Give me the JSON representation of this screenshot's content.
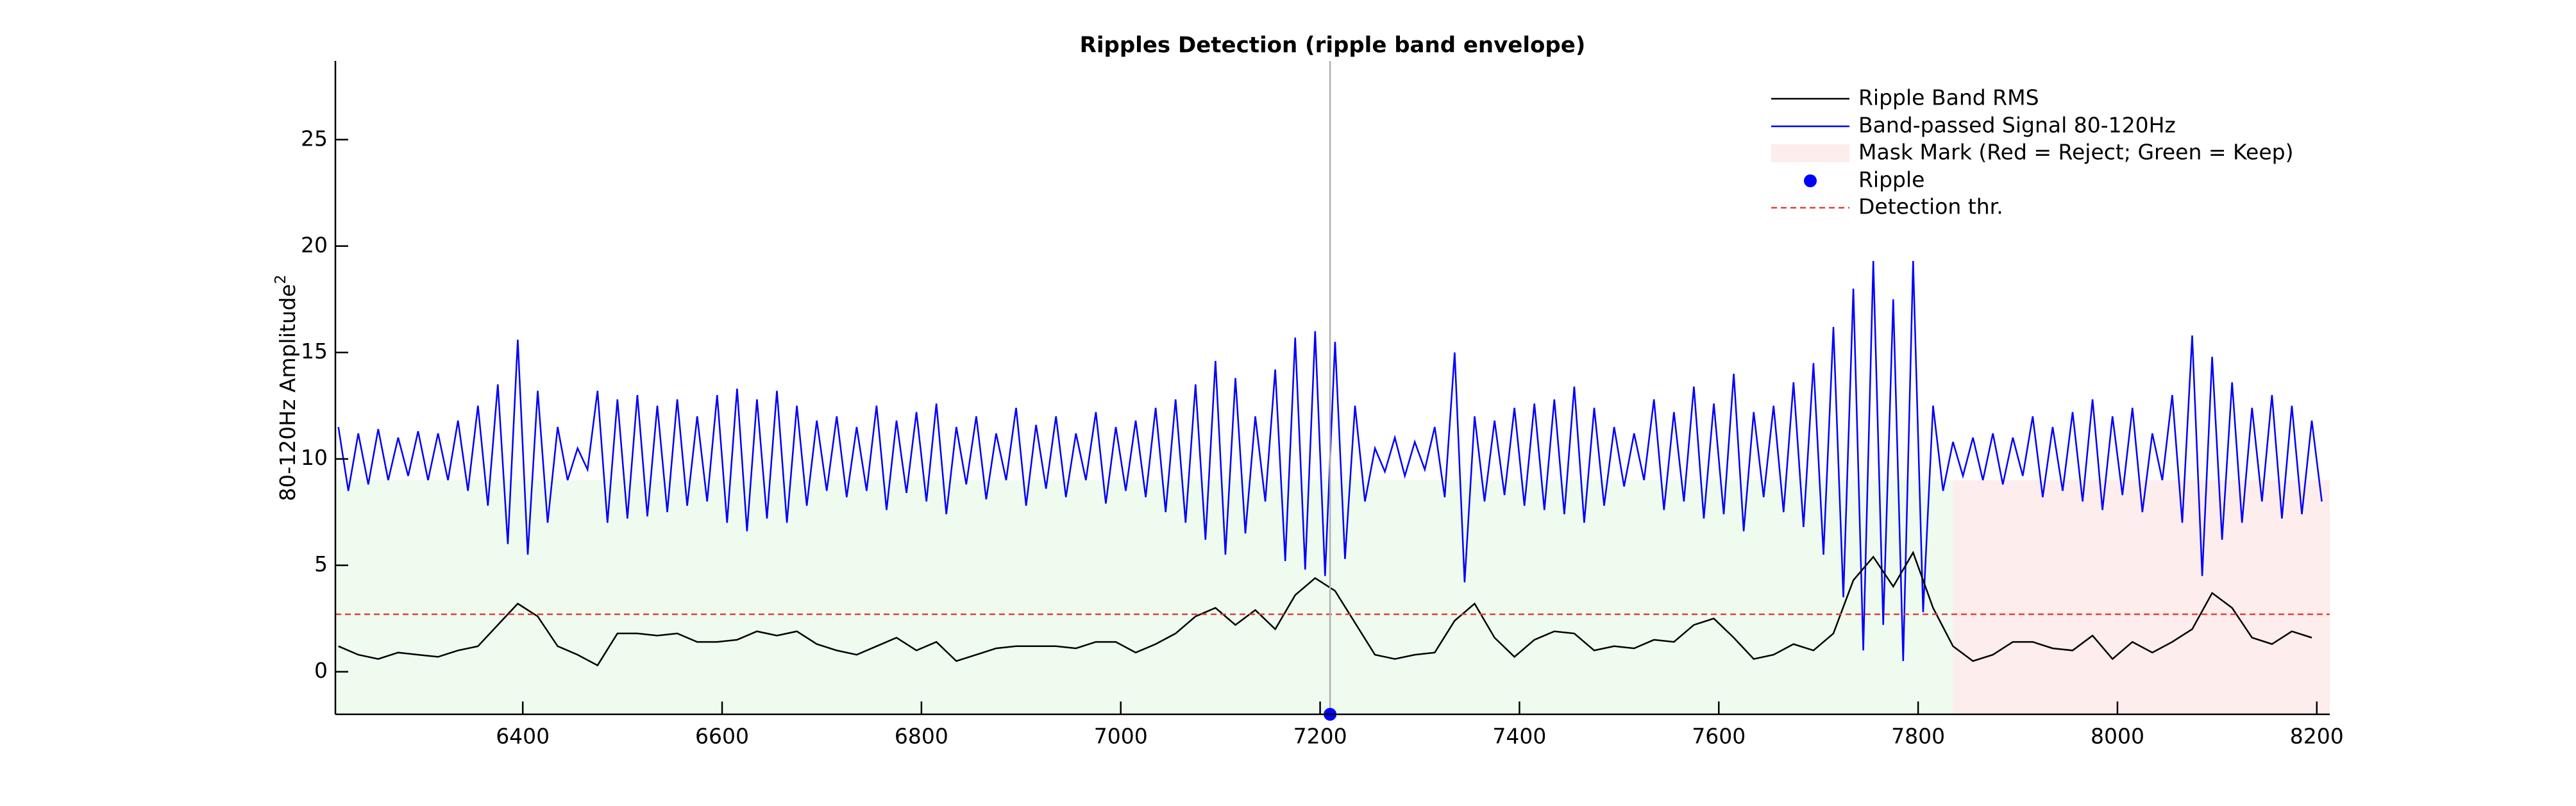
{
  "chart_data": {
    "type": "line",
    "title": "Ripples Detection  (ripple band envelope)",
    "ylabel": "80-120Hz Amplitude",
    "ylabel_superscript": "2",
    "xlim": [
      6212,
      8213
    ],
    "ylim": [
      -2,
      28.7
    ],
    "xticks": [
      6400,
      6600,
      6800,
      7000,
      7200,
      7400,
      7600,
      7800,
      8000,
      8200
    ],
    "yticks": [
      0,
      5,
      10,
      15,
      20,
      25
    ],
    "legend": "upper right",
    "mask": {
      "name": "Mask Mark (Red = Reject; Green = Keep)",
      "legend_color": "#fdeded",
      "regions": [
        {
          "color": "#effbef",
          "xrange": [
            6212,
            7835
          ],
          "top": 9
        },
        {
          "color": "#fdeded",
          "xrange": [
            7835,
            8213
          ],
          "top": 9
        }
      ]
    },
    "series": [
      {
        "name": "Ripple Band RMS",
        "color": "#000000",
        "x": [
          6215,
          6235,
          6255,
          6275,
          6295,
          6315,
          6335,
          6355,
          6375,
          6395,
          6415,
          6435,
          6455,
          6475,
          6495,
          6515,
          6535,
          6555,
          6575,
          6595,
          6615,
          6635,
          6655,
          6675,
          6695,
          6715,
          6735,
          6755,
          6775,
          6795,
          6815,
          6835,
          6855,
          6875,
          6895,
          6915,
          6935,
          6955,
          6975,
          6995,
          7015,
          7035,
          7055,
          7075,
          7095,
          7115,
          7135,
          7155,
          7175,
          7195,
          7215,
          7235,
          7255,
          7275,
          7295,
          7315,
          7335,
          7355,
          7375,
          7395,
          7415,
          7435,
          7455,
          7475,
          7495,
          7515,
          7535,
          7555,
          7575,
          7595,
          7615,
          7635,
          7655,
          7675,
          7695,
          7715,
          7735,
          7755,
          7775,
          7795,
          7815,
          7835,
          7855,
          7875,
          7895,
          7915,
          7935,
          7955,
          7975,
          7995,
          8015,
          8035,
          8055,
          8075,
          8095,
          8115,
          8135,
          8155,
          8175,
          8195
        ],
        "values": [
          1.2,
          0.8,
          0.6,
          0.9,
          0.8,
          0.7,
          1,
          1.2,
          2.2,
          3.2,
          2.6,
          1.2,
          0.8,
          0.3,
          1.8,
          1.8,
          1.7,
          1.8,
          1.4,
          1.4,
          1.5,
          1.9,
          1.7,
          1.9,
          1.3,
          1,
          0.8,
          1.2,
          1.6,
          1,
          1.4,
          0.5,
          0.8,
          1.1,
          1.2,
          1.2,
          1.2,
          1.1,
          1.4,
          1.4,
          0.9,
          1.3,
          1.8,
          2.6,
          3,
          2.2,
          2.9,
          2,
          3.6,
          4.4,
          3.8,
          2.3,
          0.8,
          0.6,
          0.8,
          0.9,
          2.4,
          3.2,
          1.6,
          0.7,
          1.5,
          1.9,
          1.8,
          1,
          1.2,
          1.1,
          1.5,
          1.4,
          2.2,
          2.5,
          1.6,
          0.6,
          0.8,
          1.3,
          1,
          1.8,
          4.3,
          5.4,
          4,
          5.6,
          3,
          1.2,
          0.5,
          0.8,
          1.4,
          1.4,
          1.1,
          1,
          1.7,
          0.6,
          1.4,
          0.9,
          1.4,
          2,
          3.7,
          3,
          1.6,
          1.3,
          1.9,
          1.6
        ]
      },
      {
        "name": "Band-passed Signal 80-120Hz",
        "color": "#0000ff",
        "x": [
          6215,
          6225,
          6235,
          6245,
          6255,
          6265,
          6275,
          6285,
          6295,
          6305,
          6315,
          6325,
          6335,
          6345,
          6355,
          6365,
          6375,
          6385,
          6395,
          6405,
          6415,
          6425,
          6435,
          6445,
          6455,
          6465,
          6475,
          6485,
          6495,
          6505,
          6515,
          6525,
          6535,
          6545,
          6555,
          6565,
          6575,
          6585,
          6595,
          6605,
          6615,
          6625,
          6635,
          6645,
          6655,
          6665,
          6675,
          6685,
          6695,
          6705,
          6715,
          6725,
          6735,
          6745,
          6755,
          6765,
          6775,
          6785,
          6795,
          6805,
          6815,
          6825,
          6835,
          6845,
          6855,
          6865,
          6875,
          6885,
          6895,
          6905,
          6915,
          6925,
          6935,
          6945,
          6955,
          6965,
          6975,
          6985,
          6995,
          7005,
          7015,
          7025,
          7035,
          7045,
          7055,
          7065,
          7075,
          7085,
          7095,
          7105,
          7115,
          7125,
          7135,
          7145,
          7155,
          7165,
          7175,
          7185,
          7195,
          7205,
          7215,
          7225,
          7235,
          7245,
          7255,
          7265,
          7275,
          7285,
          7295,
          7305,
          7315,
          7325,
          7335,
          7345,
          7355,
          7365,
          7375,
          7385,
          7395,
          7405,
          7415,
          7425,
          7435,
          7445,
          7455,
          7465,
          7475,
          7485,
          7495,
          7505,
          7515,
          7525,
          7535,
          7545,
          7555,
          7565,
          7575,
          7585,
          7595,
          7605,
          7615,
          7625,
          7635,
          7645,
          7655,
          7665,
          7675,
          7685,
          7695,
          7705,
          7715,
          7725,
          7735,
          7745,
          7755,
          7765,
          7775,
          7785,
          7795,
          7805,
          7815,
          7825,
          7835,
          7845,
          7855,
          7865,
          7875,
          7885,
          7895,
          7905,
          7915,
          7925,
          7935,
          7945,
          7955,
          7965,
          7975,
          7985,
          7995,
          8005,
          8015,
          8025,
          8035,
          8045,
          8055,
          8065,
          8075,
          8085,
          8095,
          8105,
          8115,
          8125,
          8135,
          8145,
          8155,
          8165,
          8175,
          8185,
          8195,
          8205
        ],
        "values": [
          11.5,
          8.5,
          11.2,
          8.8,
          11.4,
          9,
          11,
          9.2,
          11.3,
          9,
          11.2,
          9,
          11.8,
          8.5,
          12.5,
          7.8,
          13.5,
          6,
          15.6,
          5.5,
          13.2,
          7,
          11.5,
          9,
          10.5,
          9.5,
          13.2,
          7,
          12.8,
          7.2,
          13,
          7.3,
          12.5,
          7.5,
          12.8,
          7.8,
          12,
          8,
          13,
          7,
          13.3,
          6.6,
          12.8,
          7.2,
          13.2,
          7,
          12.5,
          7.8,
          11.8,
          8.5,
          12,
          8.2,
          11.5,
          8.5,
          12.5,
          7.6,
          11.8,
          8.4,
          12.2,
          8,
          12.6,
          7.4,
          11.5,
          8.8,
          12,
          8.1,
          11.2,
          9,
          12.4,
          7.8,
          11.6,
          8.6,
          12,
          8.2,
          11.2,
          9,
          12.2,
          7.9,
          11.5,
          8.5,
          11.8,
          8.2,
          12.4,
          7.5,
          12.8,
          7,
          13.5,
          6.2,
          14.6,
          5.5,
          13.8,
          6.5,
          12,
          8,
          14.2,
          5.2,
          15.7,
          4.8,
          16,
          4.5,
          15.5,
          5.3,
          12.5,
          8,
          10.5,
          9.4,
          11,
          9.2,
          10.8,
          9.5,
          11.5,
          8.2,
          15,
          4.2,
          12,
          8,
          11.8,
          8.3,
          12.4,
          7.8,
          12.6,
          7.6,
          12.8,
          7.4,
          13.4,
          7,
          12.4,
          7.8,
          11.5,
          8.7,
          11.2,
          9,
          12.8,
          7.6,
          12.2,
          8,
          13.4,
          7.2,
          12.6,
          7.4,
          14,
          6.6,
          12.2,
          8.2,
          12.5,
          7.5,
          13.6,
          6.8,
          14.5,
          5.5,
          16.2,
          3.5,
          18,
          1,
          19.3,
          2.2,
          17.5,
          0.5,
          19.3,
          2.8,
          12.5,
          8.5,
          10.8,
          9.2,
          11,
          9,
          11.2,
          8.8,
          11,
          9.2,
          12,
          8.2,
          11.5,
          8.5,
          12.2,
          8,
          12.8,
          7.6,
          12,
          8.3,
          12.4,
          7.5,
          11.2,
          9,
          13,
          7,
          15.8,
          4.5,
          14.8,
          6.2,
          13.6,
          7,
          12.4,
          8,
          13,
          7.2,
          12.5,
          7.4,
          11.8,
          8
        ]
      }
    ],
    "ripple": {
      "name": "Ripple",
      "color": "#0000ff",
      "line_color": "#b0b0b0",
      "x": [
        7210
      ],
      "values": [
        -2
      ]
    },
    "threshold": {
      "name": "Detection thr.",
      "color": "#e0403a",
      "value": 2.7
    }
  }
}
